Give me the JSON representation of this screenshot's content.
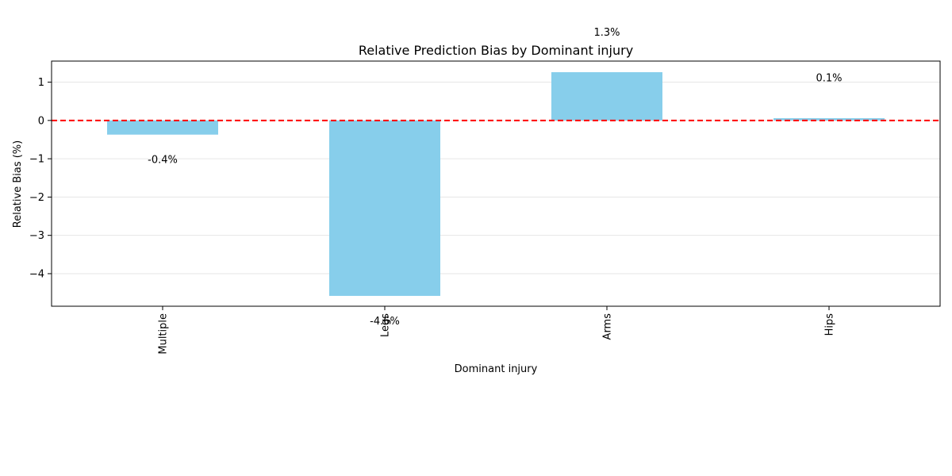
{
  "chart_data": {
    "type": "bar",
    "title": "Relative Prediction Bias by Dominant injury",
    "xlabel": "Dominant injury",
    "ylabel": "Relative Bias (%)",
    "categories": [
      "Multiple",
      "Legs",
      "Arms",
      "Hips"
    ],
    "values": [
      -0.37,
      -4.58,
      1.26,
      0.06
    ],
    "data_labels": [
      "-0.4%",
      "-4.6%",
      "1.3%",
      "0.1%"
    ],
    "ylim": [
      -4.85,
      1.55
    ],
    "yticks": [
      1,
      0,
      -1,
      -2,
      -3,
      -4
    ],
    "ytick_labels": [
      "1",
      "0",
      "−1",
      "−2",
      "−3",
      "−4"
    ],
    "reference_line": 0,
    "grid": "y",
    "bar_color": "#87CEEB",
    "reference_line_color": "#FF0000",
    "grid_color": "#E6E6E6"
  }
}
